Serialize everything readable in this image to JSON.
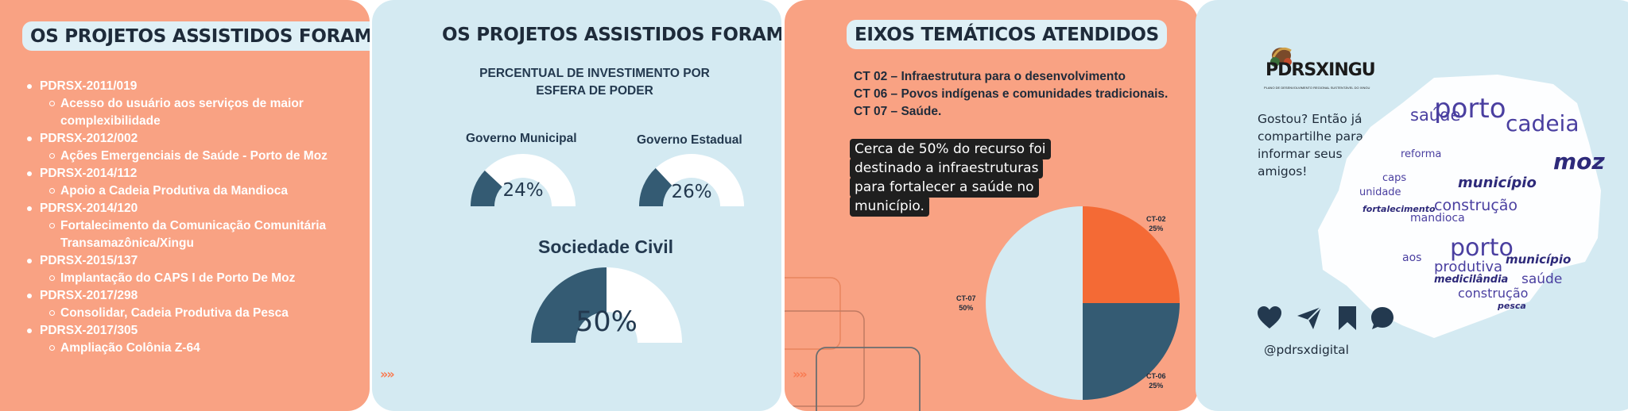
{
  "panel1": {
    "title": "OS PROJETOS ASSISTIDOS FORAM:",
    "projects": [
      {
        "code": "PDRSX-2011/019",
        "desc": "Acesso do usuário aos serviços de maior complexibilidade"
      },
      {
        "code": "PDRSX-2012/002",
        "desc": "Ações Emergenciais de Saúde - Porto de Moz"
      },
      {
        "code": "PDRSX-2014/112",
        "desc": "Apoio a Cadeia Produtiva da Mandioca"
      },
      {
        "code": "PDRSX-2014/120",
        "desc": "Fortalecimento da Comunicação Comunitária Transamazônica/Xingu"
      },
      {
        "code": "PDRSX-2015/137",
        "desc": "Implantação do CAPS I de Porto De Moz"
      },
      {
        "code": "PDRSX-2017/298",
        "desc": " Consolidar, Cadeia Produtiva da Pesca"
      },
      {
        "code": "PDRSX-2017/305",
        "desc": "Ampliação Colônia Z-64"
      }
    ]
  },
  "panel2": {
    "title": "OS PROJETOS ASSISTIDOS FORAM:",
    "subtitle_line1": "PERCENTUAL DE INVESTIMENTO POR",
    "subtitle_line2": "ESFERA DE PODER",
    "gauges": [
      {
        "label": "Governo Municipal",
        "value_text": "24%",
        "fraction": 0.24
      },
      {
        "label": "Governo Estadual",
        "value_text": "26%",
        "fraction": 0.26
      },
      {
        "label": "Sociedade Civil",
        "value_text": "50%",
        "fraction": 0.5
      }
    ],
    "chevrons": "»»"
  },
  "panel3": {
    "title": "EIXOS TEMÁTICOS ATENDIDOS",
    "axes": [
      "CT 02 – Infraestrutura para o desenvolvimento",
      "CT 06 – Povos indígenas e comunidades tradicionais.",
      "CT 07 – Saúde."
    ],
    "callout_lines": [
      "Cerca de 50% do recurso foi",
      "destinado a infraestruturas",
      "para fortalecer a saúde no",
      "município."
    ],
    "chevrons": "»»",
    "colors": {
      "ct02": "#f46a35",
      "ct06": "#345b73",
      "ct07": "#d4eaf2"
    }
  },
  "chart_data": {
    "type": "pie",
    "categories": [
      "CT-02",
      "CT-06",
      "CT-07"
    ],
    "values": [
      25,
      25,
      50
    ],
    "labels": [
      "25%",
      "25%",
      "50%"
    ]
  },
  "panel4": {
    "logo_text": "PDRSXINGU",
    "logo_subtext": "PLANO DE DESENVOLVIMENTO REGIONAL SUSTENTÁVEL DO XINGU",
    "share_text": "Gostou? Então já compartilhe para informar seus amigos!",
    "handle": "@pdrsxdigital",
    "social_icons": [
      "heart-icon",
      "send-icon",
      "bookmark-icon",
      "comment-icon"
    ],
    "word_cloud": [
      "porto",
      "cadeia",
      "moz",
      "saúde",
      "município",
      "construção",
      "produtiva",
      "reforma",
      "unidade",
      "caps",
      "medicilândia",
      "mandioca",
      "fortalecimento",
      "aos",
      "pesca"
    ]
  }
}
